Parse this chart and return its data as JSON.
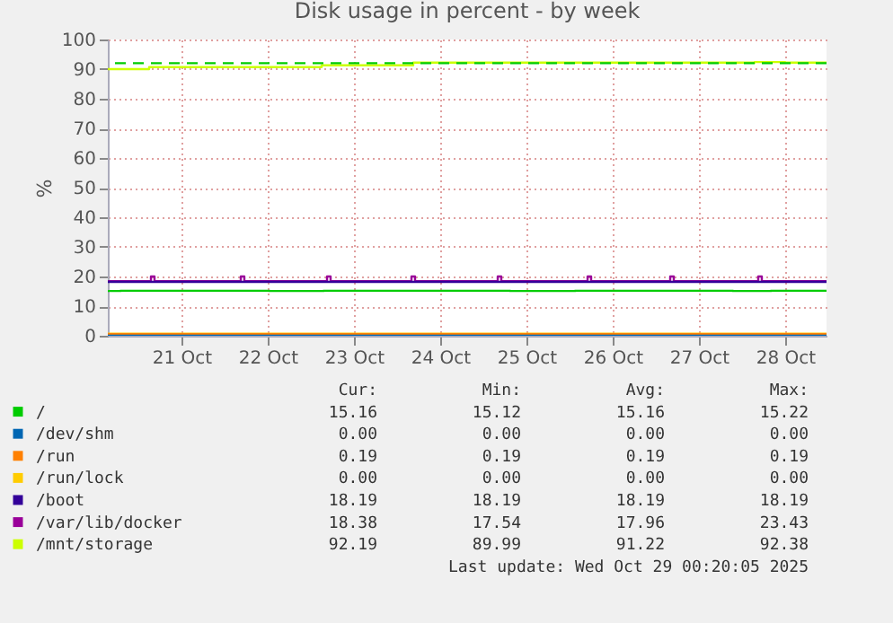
{
  "chart_data": {
    "type": "step",
    "title": "Disk usage in percent - by week",
    "ylabel": "%",
    "xlim": [
      "2025-10-20T15:30",
      "2025-10-28T23:30"
    ],
    "xticks": [
      {
        "value": "2025-10-21T12:00",
        "label": "21 Oct"
      },
      {
        "value": "2025-10-22T12:00",
        "label": "22 Oct"
      },
      {
        "value": "2025-10-23T12:00",
        "label": "23 Oct"
      },
      {
        "value": "2025-10-24T12:00",
        "label": "24 Oct"
      },
      {
        "value": "2025-10-25T12:00",
        "label": "25 Oct"
      },
      {
        "value": "2025-10-26T12:00",
        "label": "26 Oct"
      },
      {
        "value": "2025-10-27T12:00",
        "label": "27 Oct"
      },
      {
        "value": "2025-10-28T12:00",
        "label": "28 Oct"
      }
    ],
    "ylim": [
      0,
      100
    ],
    "yticks": [
      0,
      10,
      20,
      30,
      40,
      50,
      60,
      70,
      80,
      90,
      100
    ],
    "grid": true,
    "legend": "bottom",
    "ref_lines": [
      {
        "axis": "y",
        "value": 92,
        "color": "#00cc00",
        "line_style": "dashed"
      }
    ],
    "series": [
      {
        "name": "/",
        "color": "#00cc00",
        "x": [
          "2025-10-20T15:30",
          "2025-10-20T19:00",
          "2025-10-22T12:30",
          "2025-10-23T03:30",
          "2025-10-25T07:30",
          "2025-10-26T01:30",
          "2025-10-27T21:30",
          "2025-10-28T08:00",
          "2025-10-28T23:30"
        ],
        "values": [
          15.1,
          15.2,
          15.1,
          15.2,
          15.1,
          15.2,
          15.1,
          15.2,
          15.2
        ]
      },
      {
        "name": "/dev/shm",
        "color": "#0066b3",
        "x": [
          "2025-10-20T15:30",
          "2025-10-28T23:30"
        ],
        "values": [
          0,
          0
        ]
      },
      {
        "name": "/run",
        "color": "#ff8000",
        "x": [
          "2025-10-20T15:30",
          "2025-10-28T23:30"
        ],
        "values": [
          0.2,
          0.2
        ]
      },
      {
        "name": "/run/lock",
        "color": "#ffcc00",
        "x": [
          "2025-10-20T15:30",
          "2025-10-28T23:30"
        ],
        "values": [
          0,
          0
        ]
      },
      {
        "name": "/boot",
        "color": "#330099",
        "x": [
          "2025-10-20T15:30",
          "2025-10-28T23:30"
        ],
        "values": [
          18.2,
          18.2
        ]
      },
      {
        "name": "/var/lib/docker",
        "color": "#990099",
        "x": [
          "2025-10-20T15:30",
          "2025-10-21T03:30",
          "2025-10-21T04:30",
          "2025-10-22T04:30",
          "2025-10-22T05:30",
          "2025-10-23T04:30",
          "2025-10-23T05:30",
          "2025-10-24T04:00",
          "2025-10-24T05:00",
          "2025-10-25T04:00",
          "2025-10-25T05:00",
          "2025-10-26T05:00",
          "2025-10-26T06:00",
          "2025-10-27T04:00",
          "2025-10-27T05:00",
          "2025-10-28T04:30",
          "2025-10-28T05:30",
          "2025-10-28T23:30"
        ],
        "values": [
          18.4,
          20,
          18.4,
          20,
          18.4,
          20,
          18.4,
          20,
          18.4,
          20,
          18.4,
          20,
          18.4,
          20,
          18.4,
          20,
          18.4,
          18.4
        ]
      },
      {
        "name": "/mnt/storage",
        "color": "#ccff00",
        "x": [
          "2025-10-20T15:30",
          "2025-10-21T03:00",
          "2025-10-23T03:00",
          "2025-10-24T04:30",
          "2025-10-28T03:30",
          "2025-10-28T12:00",
          "2025-10-28T23:30"
        ],
        "values": [
          90.0,
          90.7,
          91.3,
          92.2,
          92.4,
          92.2,
          92.2
        ]
      }
    ],
    "annotations": [
      "Cur: Min: Avg: Max:",
      "15.16 15.12 15.16 15.22",
      "0.00 0.00 0.00 0.00",
      "0.19 0.19 0.19 0.19",
      "0.00 0.00 0.00 0.00",
      "18.19 18.19 18.19 18.19",
      "18.38 17.54 17.96 23.43",
      "92.19 89.99 91.22 92.38",
      "Last update: Wed Oct 29 00:20:05 2025"
    ]
  }
}
